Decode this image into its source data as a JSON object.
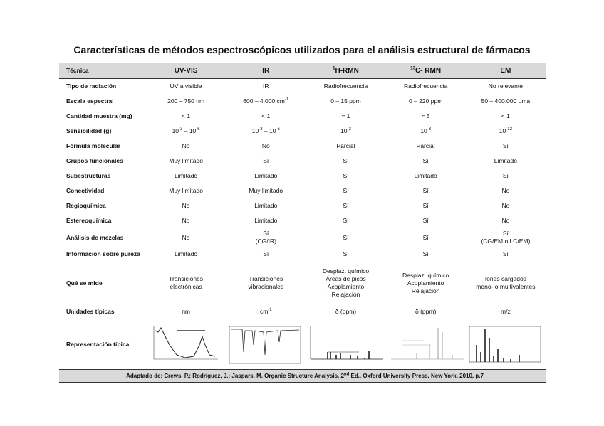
{
  "title": "Características de métodos espectroscópicos utilizados para el análisis estructural de fármacos",
  "table": {
    "header": [
      "Técnica",
      "UV-VIS",
      "IR",
      [
        {
          "sup": "1"
        },
        "H-RMN"
      ],
      [
        {
          "sup": "13"
        },
        "C- RMN"
      ],
      "EM"
    ],
    "rows": [
      {
        "label": "Tipo de radiación",
        "cells": [
          "UV a visible",
          "IR",
          "Radiofrecuencia",
          "Radiofrecuencia",
          "No relevante"
        ]
      },
      {
        "label": "Escala espectral",
        "cells": [
          "200 – 750 nm",
          [
            "600 – 4.000 cm",
            {
              "sup": "-1"
            }
          ],
          "0 – 15 ppm",
          "0 – 220 ppm",
          "50 – 400.000 uma"
        ]
      },
      {
        "label": "Cantidad muestra (mg)",
        "cells": [
          "< 1",
          "< 1",
          "≈ 1",
          "≈ 5",
          "< 1"
        ]
      },
      {
        "label": "Sensibilidad (g)",
        "cells": [
          [
            "10",
            {
              "sup": "-3"
            },
            " – 10",
            {
              "sup": "-6"
            }
          ],
          [
            "10",
            {
              "sup": "-3"
            },
            " – 10",
            {
              "sup": "-6"
            }
          ],
          [
            "10",
            {
              "sup": "-3"
            }
          ],
          [
            "10",
            {
              "sup": "-3"
            }
          ],
          [
            "10",
            {
              "sup": "-12"
            }
          ]
        ]
      },
      {
        "label": "Fórmula molecular",
        "cells": [
          "No",
          "No",
          "Parcial",
          "Parcial",
          "Sí"
        ]
      },
      {
        "label": "Grupos funcionales",
        "cells": [
          "Muy limitado",
          "Sí",
          "Sí",
          "Sí",
          "Limitado"
        ]
      },
      {
        "label": "Subestructuras",
        "cells": [
          "Limitado",
          "Limitado",
          "Sí",
          "Limitado",
          "Sí"
        ]
      },
      {
        "label": "Conectividad",
        "cells": [
          "Muy limitado",
          "Muy limitado",
          "Sí",
          "Sí",
          "No"
        ]
      },
      {
        "label": "Regioquímica",
        "cells": [
          "No",
          "Limitado",
          "Sí",
          "Sí",
          "No"
        ]
      },
      {
        "label": "Estereoquímica",
        "cells": [
          "No",
          "Limitado",
          "Sí",
          "Sí",
          "No"
        ]
      },
      {
        "label": "Análisis de mezclas",
        "cells": [
          "No",
          "Sí\n(CG/IR)",
          "Sí",
          "Sí",
          "Sí\n(CG/EM o LC/EM)"
        ]
      },
      {
        "label": "Información sobre pureza",
        "cells": [
          "Limitado",
          "Sí",
          "Sí",
          "Sí",
          "Sí"
        ]
      },
      {
        "label": "Qué se mide",
        "cells": [
          "Transiciones\nelectrónicas",
          "Transiciones\nvibracionales",
          "Desplaz. químico\nÁreas de picos\nAcoplamiento\nRelajación",
          "Desplaz. químico\nAcoplamiento\nRelajación",
          "Iones cargados\nmono- o multivalentes"
        ]
      },
      {
        "label": "Unidades típicas",
        "cells": [
          "nm",
          [
            "cm",
            {
              "sup": "-1"
            }
          ],
          "δ (ppm)",
          "δ (ppm)",
          "m/z"
        ]
      },
      {
        "label": "Representación típica"
      }
    ],
    "footer": [
      "Adaptado de: Crews, P.; Rodríguez, J.; Jaspars, M. Organic Structure Analysis, 2",
      {
        "sup": "nd"
      },
      " Ed., Oxford University Press, New York, 2010, p.7"
    ]
  }
}
